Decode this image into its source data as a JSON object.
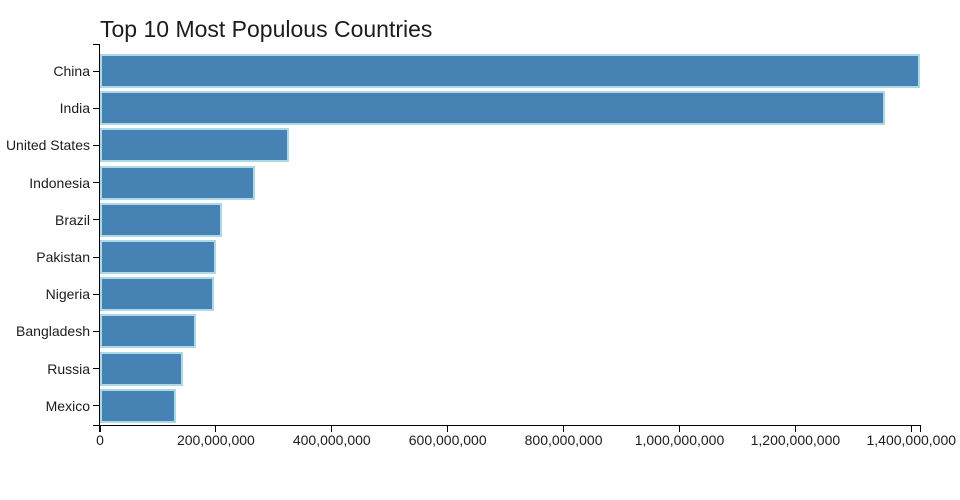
{
  "page": {
    "background": "#ffffff"
  },
  "chart_data": {
    "type": "bar",
    "orientation": "horizontal",
    "title": "Top 10 Most Populous Countries",
    "categories": [
      "China",
      "India",
      "United States",
      "Indonesia",
      "Brazil",
      "Pakistan",
      "Nigeria",
      "Bangladesh",
      "Russia",
      "Mexico"
    ],
    "values": [
      1415045928,
      1354051854,
      326766748,
      266794980,
      210867954,
      200813818,
      195875237,
      166368149,
      143964709,
      130759074
    ],
    "xlabel": "",
    "ylabel": "",
    "xlim": [
      0,
      1415045928
    ],
    "xticks": [
      {
        "value": 0,
        "label": "0"
      },
      {
        "value": 200000000,
        "label": "200,000,000"
      },
      {
        "value": 400000000,
        "label": "400,000,000"
      },
      {
        "value": 600000000,
        "label": "600,000,000"
      },
      {
        "value": 800000000,
        "label": "800,000,000"
      },
      {
        "value": 1000000000,
        "label": "1,000,000,000"
      },
      {
        "value": 1200000000,
        "label": "1,200,000,000"
      },
      {
        "value": 1400000000,
        "label": "1,400,000,000"
      }
    ],
    "grid": false,
    "legend": false,
    "colors": {
      "bar_fill": "#4682B4",
      "bar_edge": "#ADD8E6",
      "axis": "#000000",
      "text": "#1c1c1c"
    }
  }
}
